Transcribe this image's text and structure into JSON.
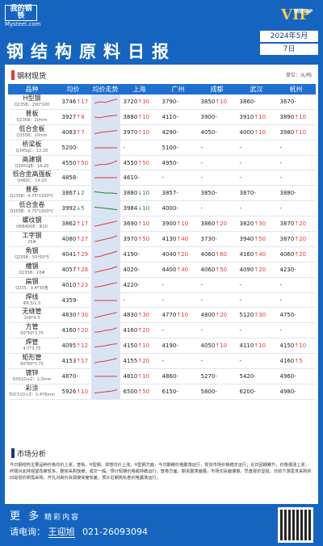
{
  "brand": {
    "logo_cn": "我的钢铁",
    "logo_en": "Mysteel.com",
    "vip_small": "钢铁VIP",
    "vip": "VIP"
  },
  "header": {
    "title": "钢结构原料日报",
    "month": "2024年5月",
    "day": "7日"
  },
  "section1": {
    "title": "钢材现货",
    "unit": "单位：元/吨"
  },
  "columns": [
    "品种",
    "均价",
    "均价走势",
    "上海",
    "广州",
    "成都",
    "武汉",
    "杭州"
  ],
  "rows": [
    {
      "name": "H型钢",
      "spec": "Q235B：200*100",
      "avg": "3746",
      "ch": "17",
      "d": "up",
      "trend": [
        0.4,
        0.5,
        0.45,
        0.6,
        0.7
      ],
      "c": [
        "3720↑30",
        "3790-",
        "3850↑10",
        "3860-",
        "3670-"
      ]
    },
    {
      "name": "普板",
      "spec": "Q235B：20mm",
      "avg": "3927",
      "ch": "8",
      "d": "up",
      "trend": [
        0.5,
        0.45,
        0.55,
        0.6,
        0.65
      ],
      "c": [
        "3880↑10",
        "4110-",
        "3900-",
        "3910↑10",
        "3890↑10"
      ]
    },
    {
      "name": "低合金板",
      "spec": "Q355B：20mm",
      "avg": "4083",
      "ch": "7",
      "d": "up",
      "trend": [
        0.4,
        0.5,
        0.55,
        0.6,
        0.65
      ],
      "c": [
        "3970↑10",
        "4290-",
        "4050-",
        "4000↑10",
        "3980↑10"
      ]
    },
    {
      "name": "桥梁板",
      "spec": "Q345qC：12-20",
      "avg": "5200",
      "ch": "",
      "d": "flat",
      "trend": [
        0.5,
        0.5,
        0.5,
        0.5,
        0.5
      ],
      "c": [
        "-",
        "5100-",
        "-",
        "-",
        "-"
      ]
    },
    {
      "name": "高建钢",
      "spec": "Q345GJB：14-20",
      "avg": "4550",
      "ch": "50",
      "d": "up",
      "trend": [
        0.3,
        0.4,
        0.4,
        0.5,
        0.7
      ],
      "c": [
        "4550↑50",
        "4950-",
        "-",
        "-",
        "-"
      ]
    },
    {
      "name": "低合金高强板",
      "spec": "Q460C：14-20",
      "avg": "4858",
      "ch": "",
      "d": "flat",
      "trend": [
        0.5,
        0.5,
        0.5,
        0.5,
        0.5
      ],
      "c": [
        "4610-",
        "-",
        "-",
        "-",
        "-"
      ]
    },
    {
      "name": "普卷",
      "spec": "Q235B：4.75*1500*C",
      "avg": "3867",
      "ch": "2",
      "d": "down",
      "trend": [
        0.6,
        0.55,
        0.5,
        0.5,
        0.45
      ],
      "c": [
        "3880↓10",
        "3857-",
        "3850-",
        "3870-",
        "3880-"
      ]
    },
    {
      "name": "低合金卷",
      "spec": "Q355B：4.75*1500*C",
      "avg": "3992",
      "ch": "5",
      "d": "down",
      "trend": [
        0.6,
        0.55,
        0.5,
        0.45,
        0.4
      ],
      "c": [
        "3984↓10",
        "4000-",
        "-",
        "-",
        "-"
      ]
    },
    {
      "name": "螺纹钢",
      "spec": "HRB400E：Φ20",
      "avg": "3862",
      "ch": "17",
      "d": "up",
      "trend": [
        0.3,
        0.4,
        0.5,
        0.6,
        0.7
      ],
      "c": [
        "3690↑10",
        "3900↑10",
        "3860↑20",
        "3820↑30",
        "3870↑20"
      ]
    },
    {
      "name": "工字钢",
      "spec": "25#",
      "avg": "4080",
      "ch": "27",
      "d": "up",
      "trend": [
        0.3,
        0.4,
        0.5,
        0.6,
        0.75
      ],
      "c": [
        "3970↑50",
        "4130↑40",
        "3730-",
        "3940↑50",
        "3870↑20"
      ]
    },
    {
      "name": "角钢",
      "spec": "Q235B：50*50*5",
      "avg": "4041",
      "ch": "29",
      "d": "up",
      "trend": [
        0.3,
        0.35,
        0.5,
        0.6,
        0.75
      ],
      "c": [
        "4190-",
        "4040↑20",
        "4060↑60",
        "4160↑40",
        "4060↑20"
      ]
    },
    {
      "name": "槽钢",
      "spec": "Q235B：16#",
      "avg": "4057",
      "ch": "28",
      "d": "up",
      "trend": [
        0.3,
        0.4,
        0.5,
        0.6,
        0.75
      ],
      "c": [
        "4020-",
        "4400↑40",
        "4060↑50",
        "4090↑20",
        "4230-"
      ]
    },
    {
      "name": "扁钢",
      "spec": "Q235：3-4*30宽",
      "avg": "4010",
      "ch": "23",
      "d": "up",
      "trend": [
        0.35,
        0.4,
        0.5,
        0.6,
        0.7
      ],
      "c": [
        "4220-",
        "-",
        "-",
        "-",
        "-"
      ]
    },
    {
      "name": "焊线",
      "spec": "Φ6.5/1.5",
      "avg": "4359",
      "ch": "",
      "d": "flat",
      "trend": [
        0.5,
        0.5,
        0.5,
        0.5,
        0.5
      ],
      "c": [
        "-",
        "-",
        "-",
        "-",
        "-"
      ]
    },
    {
      "name": "无缝管",
      "spec": "108*4.5",
      "avg": "4830",
      "ch": "30",
      "d": "up",
      "trend": [
        0.3,
        0.4,
        0.5,
        0.6,
        0.7
      ],
      "c": [
        "4830↑30",
        "4770↑10",
        "4800↑20",
        "5120↑30",
        "4750-"
      ]
    },
    {
      "name": "方管",
      "spec": "50*50*3.75",
      "avg": "4160",
      "ch": "20",
      "d": "up",
      "trend": [
        0.35,
        0.4,
        0.5,
        0.55,
        0.7
      ],
      "c": [
        "4160↑20",
        "-",
        "-",
        "-",
        "-"
      ]
    },
    {
      "name": "焊管",
      "spec": "4寸*3.75",
      "avg": "4095",
      "ch": "12",
      "d": "up",
      "trend": [
        0.4,
        0.45,
        0.5,
        0.6,
        0.65
      ],
      "c": [
        "4150↑10",
        "4190-",
        "4050↑10",
        "4110↑10",
        "4150↑10"
      ]
    },
    {
      "name": "矩形管",
      "spec": "60*80*3.75",
      "avg": "4153",
      "ch": "17",
      "d": "up",
      "trend": [
        0.35,
        0.45,
        0.5,
        0.6,
        0.7
      ],
      "c": [
        "4155↑20",
        "-",
        "-",
        "-",
        "4160↑5"
      ]
    },
    {
      "name": "镀锌",
      "spec": "DX51D+Z：1.0mm",
      "avg": "4870",
      "ch": "",
      "d": "flat",
      "trend": [
        0.5,
        0.5,
        0.5,
        0.5,
        0.5
      ],
      "c": [
        "4810↑10",
        "4860-",
        "5270-",
        "5420-",
        "4960-"
      ]
    },
    {
      "name": "彩涂",
      "spec": "TDC51D+Z：0.476mm",
      "avg": "5926",
      "ch": "10",
      "d": "up",
      "trend": [
        0.4,
        0.45,
        0.5,
        0.55,
        0.65
      ],
      "c": [
        "6500↑50",
        "6150-",
        "5800-",
        "6200-",
        "4980-"
      ]
    }
  ],
  "section2": {
    "title": "市场分析",
    "text": "今日钢结构主要品种价格均价上涨，普板、H型钢、焊管均价上涨。H型钢方面，今日期螺价格震荡运行，现货市场价格稳定运行；近日因期螺升，价格报涨上涨，终端对此持观望态度较多，整体采购放缓，成交一般。预计短期价格或持稳运行。普卷方面，期货震荡偏强，市场交投偏谨慎，早盘报价坚挺，日前下游需求采购依旧是低价刚需采购，开孔对高价资源接受度较差，预计近期热轧卷价格震荡运行。"
  },
  "footer": {
    "more": "更 多",
    "more_small": "精彩内容",
    "contact_label": "请电询：",
    "contact_name": "王迎旭",
    "phone": "021-26093094"
  },
  "colors": {
    "blue": "#1565c0",
    "header_blue": "#1e6fd0",
    "up": "#e53935",
    "down": "#2e7d32"
  }
}
